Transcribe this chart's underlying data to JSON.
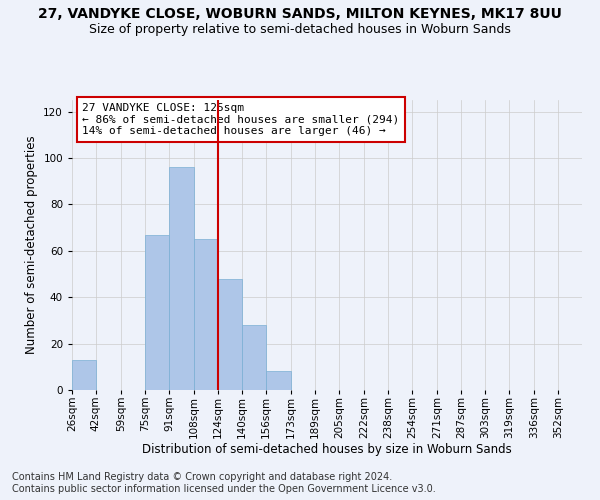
{
  "title": "27, VANDYKE CLOSE, WOBURN SANDS, MILTON KEYNES, MK17 8UU",
  "subtitle": "Size of property relative to semi-detached houses in Woburn Sands",
  "xlabel": "Distribution of semi-detached houses by size in Woburn Sands",
  "ylabel": "Number of semi-detached properties",
  "footnote1": "Contains HM Land Registry data © Crown copyright and database right 2024.",
  "footnote2": "Contains public sector information licensed under the Open Government Licence v3.0.",
  "annotation_title": "27 VANDYKE CLOSE: 125sqm",
  "annotation_line1": "← 86% of semi-detached houses are smaller (294)",
  "annotation_line2": "14% of semi-detached houses are larger (46) →",
  "bin_labels": [
    "26sqm",
    "42sqm",
    "59sqm",
    "75sqm",
    "91sqm",
    "108sqm",
    "124sqm",
    "140sqm",
    "156sqm",
    "173sqm",
    "189sqm",
    "205sqm",
    "222sqm",
    "238sqm",
    "254sqm",
    "271sqm",
    "287sqm",
    "303sqm",
    "319sqm",
    "336sqm",
    "352sqm"
  ],
  "bin_edges": [
    26,
    42,
    59,
    75,
    91,
    108,
    124,
    140,
    156,
    173,
    189,
    205,
    222,
    238,
    254,
    271,
    287,
    303,
    319,
    336,
    352
  ],
  "bar_heights": [
    13,
    0,
    0,
    67,
    96,
    65,
    48,
    28,
    8,
    0,
    0,
    0,
    0,
    0,
    0,
    0,
    0,
    0,
    0,
    0,
    0
  ],
  "bar_color": "#aec6e8",
  "bar_edge_color": "#7aafd4",
  "vline_color": "#cc0000",
  "vline_x": 124,
  "ylim": [
    0,
    125
  ],
  "yticks": [
    0,
    20,
    40,
    60,
    80,
    100,
    120
  ],
  "grid_color": "#cccccc",
  "background_color": "#eef2fa",
  "annotation_box_color": "#ffffff",
  "annotation_box_edge": "#cc0000",
  "title_fontsize": 10,
  "subtitle_fontsize": 9,
  "axis_label_fontsize": 8.5,
  "tick_fontsize": 7.5,
  "annotation_fontsize": 8,
  "footnote_fontsize": 7
}
